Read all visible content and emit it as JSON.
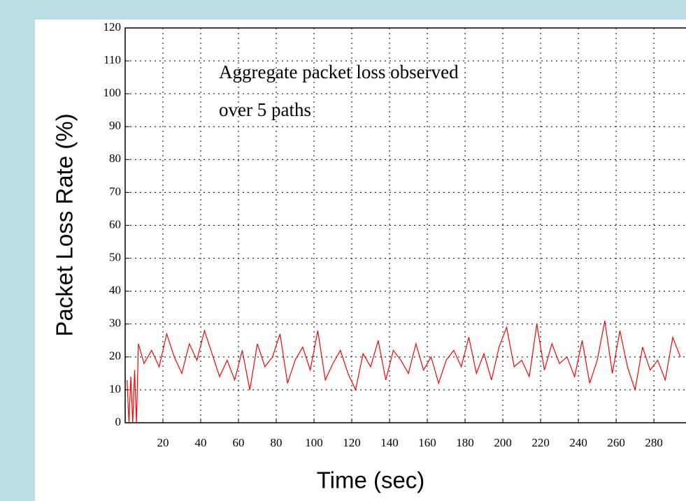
{
  "chart_data": {
    "type": "line",
    "annotation": [
      "Aggregate packet loss observed",
      "over 5 paths"
    ],
    "xlabel": "Time (sec)",
    "ylabel": "Packet Loss Rate (%)",
    "x": [
      1,
      2,
      3,
      4,
      5,
      6,
      7,
      10,
      14,
      18,
      22,
      26,
      30,
      34,
      38,
      42,
      46,
      50,
      54,
      58,
      62,
      66,
      70,
      74,
      78,
      82,
      86,
      90,
      94,
      98,
      102,
      106,
      110,
      114,
      118,
      122,
      126,
      130,
      134,
      138,
      142,
      146,
      150,
      154,
      158,
      162,
      166,
      170,
      174,
      178,
      182,
      186,
      190,
      194,
      198,
      202,
      206,
      210,
      214,
      218,
      222,
      226,
      230,
      234,
      238,
      242,
      246,
      250,
      254,
      258,
      262,
      266,
      270,
      274,
      278,
      282,
      286,
      290,
      294
    ],
    "values": [
      13,
      0,
      14,
      0,
      16,
      0,
      24,
      18,
      22,
      17,
      27,
      20,
      15,
      24,
      19,
      28,
      21,
      14,
      19,
      13,
      22,
      10,
      24,
      17,
      20,
      27,
      12,
      19,
      23,
      16,
      28,
      13,
      18,
      22,
      15,
      10,
      21,
      17,
      25,
      13,
      22,
      19,
      15,
      24,
      16,
      20,
      12,
      19,
      22,
      17,
      26,
      15,
      21,
      13,
      23,
      29,
      17,
      19,
      14,
      30,
      16,
      24,
      18,
      20,
      14,
      25,
      12,
      19,
      31,
      15,
      28,
      17,
      10,
      23,
      16,
      19,
      13,
      26,
      20
    ],
    "color": "#ff0000",
    "xlim": [
      0,
      297
    ],
    "ylim": [
      0,
      120
    ],
    "xticks": [
      20,
      40,
      60,
      80,
      100,
      120,
      140,
      160,
      180,
      200,
      220,
      240,
      260,
      280
    ],
    "yticks": [
      0,
      10,
      20,
      30,
      40,
      50,
      60,
      70,
      80,
      90,
      100,
      110,
      120
    ],
    "grid": true
  }
}
